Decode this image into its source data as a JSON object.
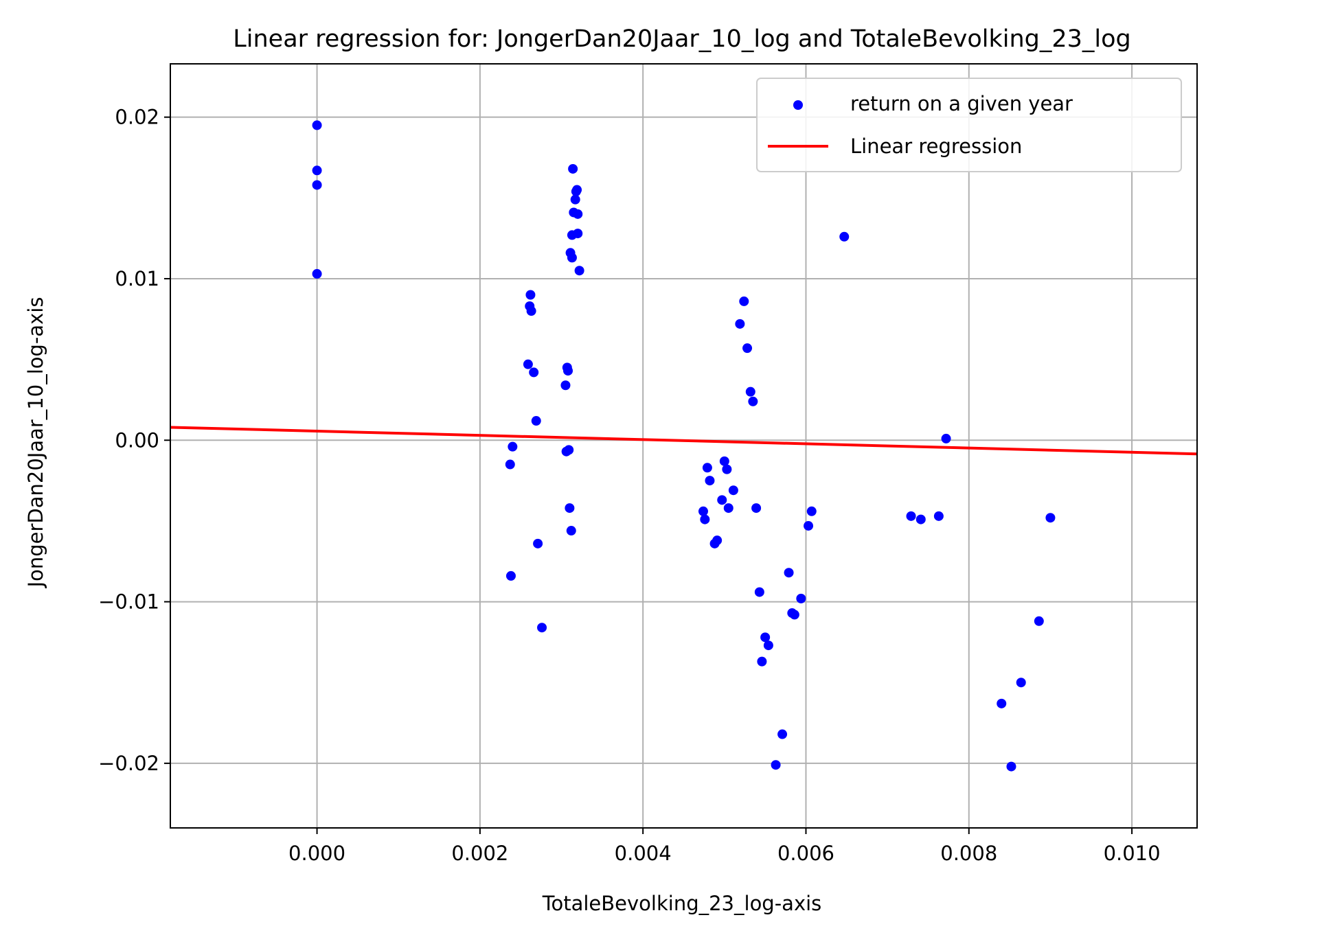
{
  "chart_data": {
    "type": "scatter",
    "title": "Linear regression for: JongerDan20Jaar_10_log and TotaleBevolking_23_log",
    "xlabel": "TotaleBevolking_23_log-axis",
    "ylabel": "JongerDan20Jaar_10_log-axis",
    "xlim": [
      -0.0018,
      0.0108
    ],
    "ylim": [
      -0.024,
      0.0233
    ],
    "xticks": [
      {
        "value": 0.0,
        "label": "0.000"
      },
      {
        "value": 0.002,
        "label": "0.002"
      },
      {
        "value": 0.004,
        "label": "0.004"
      },
      {
        "value": 0.006,
        "label": "0.006"
      },
      {
        "value": 0.008,
        "label": "0.008"
      },
      {
        "value": 0.01,
        "label": "0.010"
      }
    ],
    "yticks": [
      {
        "value": -0.02,
        "label": "−0.02"
      },
      {
        "value": -0.01,
        "label": "−0.01"
      },
      {
        "value": 0.0,
        "label": "0.00"
      },
      {
        "value": 0.01,
        "label": "0.01"
      },
      {
        "value": 0.02,
        "label": "0.02"
      }
    ],
    "grid": true,
    "legend_position": "top-right",
    "series": [
      {
        "name": "return on a given year",
        "kind": "scatter",
        "color": "#0000ff",
        "points": [
          [
            0.0,
            0.0195
          ],
          [
            0.0,
            0.0167
          ],
          [
            0.0,
            0.0158
          ],
          [
            0.0,
            0.0103
          ],
          [
            0.00237,
            -0.0015
          ],
          [
            0.00238,
            -0.0084
          ],
          [
            0.0024,
            -0.0004
          ],
          [
            0.00259,
            0.0047
          ],
          [
            0.00261,
            0.0083
          ],
          [
            0.00262,
            0.009
          ],
          [
            0.00263,
            0.008
          ],
          [
            0.00266,
            0.0042
          ],
          [
            0.00269,
            0.0012
          ],
          [
            0.00271,
            -0.0064
          ],
          [
            0.00276,
            -0.0116
          ],
          [
            0.00305,
            0.0034
          ],
          [
            0.00306,
            -0.0007
          ],
          [
            0.00307,
            0.0045
          ],
          [
            0.00308,
            0.0043
          ],
          [
            0.00309,
            -0.0006
          ],
          [
            0.0031,
            -0.0042
          ],
          [
            0.00311,
            0.0116
          ],
          [
            0.00312,
            -0.0056
          ],
          [
            0.00313,
            0.0113
          ],
          [
            0.00313,
            0.0127
          ],
          [
            0.00314,
            0.0168
          ],
          [
            0.00315,
            0.0141
          ],
          [
            0.00317,
            0.0149
          ],
          [
            0.00318,
            0.0154
          ],
          [
            0.00319,
            0.0155
          ],
          [
            0.0032,
            0.0128
          ],
          [
            0.0032,
            0.014
          ],
          [
            0.00322,
            0.0105
          ],
          [
            0.00474,
            -0.0044
          ],
          [
            0.00476,
            -0.0049
          ],
          [
            0.00479,
            -0.0017
          ],
          [
            0.00482,
            -0.0025
          ],
          [
            0.00488,
            -0.0064
          ],
          [
            0.00491,
            -0.0062
          ],
          [
            0.00497,
            -0.0037
          ],
          [
            0.005,
            -0.0013
          ],
          [
            0.00503,
            -0.0018
          ],
          [
            0.00505,
            -0.0042
          ],
          [
            0.00511,
            -0.0031
          ],
          [
            0.00519,
            0.0072
          ],
          [
            0.00524,
            0.0086
          ],
          [
            0.00528,
            0.0057
          ],
          [
            0.00532,
            0.003
          ],
          [
            0.00535,
            0.0024
          ],
          [
            0.00539,
            -0.0042
          ],
          [
            0.00543,
            -0.0094
          ],
          [
            0.00546,
            -0.0137
          ],
          [
            0.0055,
            -0.0122
          ],
          [
            0.00554,
            -0.0127
          ],
          [
            0.00563,
            -0.0201
          ],
          [
            0.00571,
            -0.0182
          ],
          [
            0.00579,
            -0.0082
          ],
          [
            0.00583,
            -0.0107
          ],
          [
            0.00586,
            -0.0108
          ],
          [
            0.00594,
            -0.0098
          ],
          [
            0.00603,
            -0.0053
          ],
          [
            0.00607,
            -0.0044
          ],
          [
            0.00647,
            0.0126
          ],
          [
            0.00729,
            -0.0047
          ],
          [
            0.00741,
            -0.0049
          ],
          [
            0.00763,
            -0.0047
          ],
          [
            0.00772,
            0.0001
          ],
          [
            0.0084,
            -0.0163
          ],
          [
            0.00852,
            -0.0202
          ],
          [
            0.00864,
            -0.015
          ],
          [
            0.00886,
            -0.0112
          ],
          [
            0.009,
            -0.0048
          ]
        ]
      },
      {
        "name": "Linear regression",
        "kind": "line",
        "color": "#ff0000",
        "points": [
          [
            -0.0018,
            0.0008
          ],
          [
            0.0108,
            -0.00085
          ]
        ]
      }
    ]
  }
}
